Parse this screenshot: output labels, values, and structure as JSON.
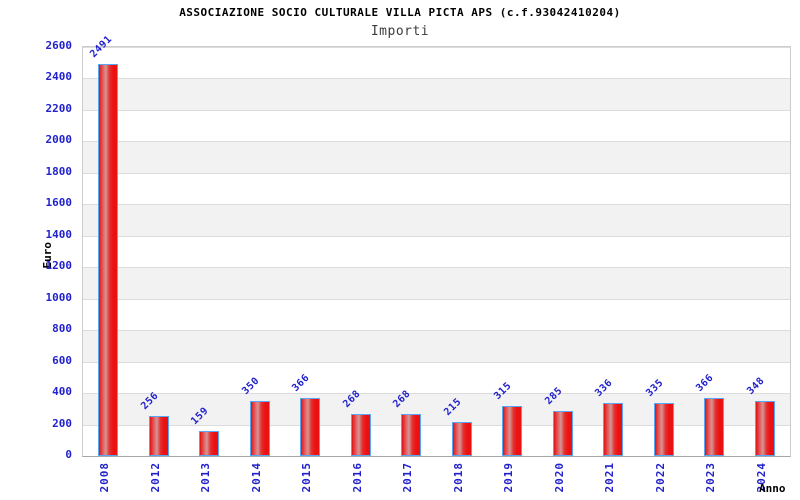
{
  "title": "ASSOCIAZIONE SOCIO CULTURALE VILLA PICTA APS (c.f.93042410204)",
  "subtitle": "Importi",
  "chart_data": {
    "type": "bar",
    "categories": [
      "2008",
      "2012",
      "2013",
      "2014",
      "2015",
      "2016",
      "2017",
      "2018",
      "2019",
      "2020",
      "2021",
      "2022",
      "2023",
      "2024"
    ],
    "values": [
      2491,
      256,
      159,
      350,
      366,
      268,
      268,
      215,
      315,
      285,
      336,
      335,
      366,
      348
    ],
    "xlabel": "Anno",
    "ylabel": "Euro",
    "ylim": [
      0,
      2600
    ],
    "ytick_step": 200,
    "yticks": [
      0,
      200,
      400,
      600,
      800,
      1000,
      1200,
      1400,
      1600,
      1800,
      2000,
      2200,
      2400,
      2600
    ],
    "grid": true,
    "legend": "none",
    "colors": {
      "bar_main": "#ee1111",
      "bar_highlight": "#d69595",
      "bar_border": "#58a6f5",
      "tick_label": "#2222cc",
      "band_alt": "#f2f2f2",
      "gridline": "#dcdcdc",
      "axis_border": "#cdcdcd",
      "title_text": "#000000",
      "subtitle_text": "#3d3d3d"
    }
  }
}
